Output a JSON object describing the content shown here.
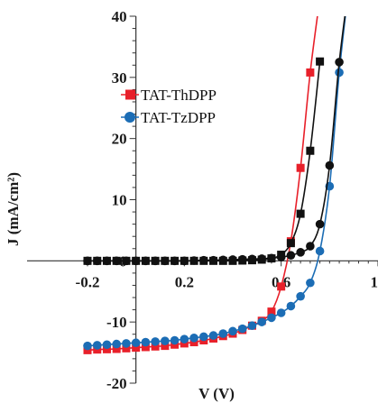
{
  "chart_data": {
    "type": "line",
    "xlabel": "V (V)",
    "ylabel": "J (mA/cm²)",
    "xlim": [
      -0.2,
      1.0
    ],
    "ylim": [
      -20,
      40
    ],
    "x_ticks": [
      "-0.2",
      "0.2",
      "0.6",
      "1"
    ],
    "x_tick_values": [
      -0.2,
      0.2,
      0.6,
      1.0
    ],
    "y_ticks": [
      "-20",
      "-10",
      "0",
      "10",
      "20",
      "30",
      "40"
    ],
    "y_tick_values": [
      -20,
      -10,
      0,
      10,
      20,
      30,
      40
    ],
    "legend_position": "upper-left",
    "series": [
      {
        "name": "TAT-ThDPP",
        "marker": "square",
        "style": "light",
        "color": "#e8202a",
        "markerColor": "#e8202a",
        "x": [
          -0.2,
          -0.16,
          -0.12,
          -0.08,
          -0.04,
          0.0,
          0.04,
          0.08,
          0.12,
          0.16,
          0.2,
          0.24,
          0.28,
          0.32,
          0.36,
          0.4,
          0.44,
          0.48,
          0.52,
          0.56,
          0.6,
          0.64,
          0.68,
          0.72,
          0.76
        ],
        "y": [
          -14.6,
          -14.5,
          -14.45,
          -14.4,
          -14.3,
          -14.2,
          -14.1,
          -14.0,
          -13.9,
          -13.7,
          -13.5,
          -13.3,
          -13.0,
          -12.7,
          -12.3,
          -11.9,
          -11.3,
          -10.6,
          -9.8,
          -8.3,
          -4.2,
          3.2,
          15.2,
          30.8,
          43.0
        ]
      },
      {
        "name": "TAT-ThDPP",
        "marker": "square",
        "style": "dark",
        "color": "#111111",
        "markerColor": "#111111",
        "x": [
          -0.2,
          -0.16,
          -0.12,
          -0.08,
          -0.04,
          0.0,
          0.04,
          0.08,
          0.12,
          0.16,
          0.2,
          0.24,
          0.28,
          0.32,
          0.36,
          0.4,
          0.44,
          0.48,
          0.52,
          0.56,
          0.6,
          0.64,
          0.68,
          0.72,
          0.76
        ],
        "y": [
          0.0,
          0.0,
          0.0,
          0.0,
          0.0,
          0.0,
          0.0,
          0.0,
          0.0,
          0.0,
          0.0,
          0.0,
          0.0,
          0.0,
          0.0,
          0.0,
          0.05,
          0.1,
          0.2,
          0.4,
          1.0,
          2.9,
          7.7,
          18.0,
          32.6
        ]
      },
      {
        "name": "TAT-TzDPP",
        "marker": "circle",
        "style": "light",
        "color": "#1c6db5",
        "markerColor": "#1c6db5",
        "x": [
          -0.2,
          -0.16,
          -0.12,
          -0.08,
          -0.04,
          0.0,
          0.04,
          0.08,
          0.12,
          0.16,
          0.2,
          0.24,
          0.28,
          0.32,
          0.36,
          0.4,
          0.44,
          0.48,
          0.52,
          0.56,
          0.6,
          0.64,
          0.68,
          0.72,
          0.76,
          0.8,
          0.84,
          0.88
        ],
        "y": [
          -13.9,
          -13.8,
          -13.7,
          -13.6,
          -13.5,
          -13.4,
          -13.3,
          -13.2,
          -13.1,
          -13.0,
          -12.8,
          -12.6,
          -12.4,
          -12.2,
          -11.9,
          -11.5,
          -11.1,
          -10.6,
          -10.0,
          -9.3,
          -8.5,
          -7.4,
          -5.8,
          -3.6,
          1.6,
          12.2,
          30.8,
          45.0
        ]
      },
      {
        "name": "TAT-TzDPP",
        "marker": "circle",
        "style": "dark",
        "color": "#111111",
        "markerColor": "#111111",
        "x": [
          -0.2,
          -0.16,
          -0.12,
          -0.08,
          -0.04,
          0.0,
          0.04,
          0.08,
          0.12,
          0.16,
          0.2,
          0.24,
          0.28,
          0.32,
          0.36,
          0.4,
          0.44,
          0.48,
          0.52,
          0.56,
          0.6,
          0.64,
          0.68,
          0.72,
          0.76,
          0.8,
          0.84,
          0.88
        ],
        "y": [
          0.0,
          0.0,
          0.0,
          0.0,
          0.0,
          0.0,
          0.0,
          0.0,
          0.0,
          0.0,
          0.0,
          0.05,
          0.1,
          0.1,
          0.15,
          0.2,
          0.25,
          0.3,
          0.35,
          0.45,
          0.6,
          0.9,
          1.4,
          2.4,
          6.0,
          15.6,
          32.5,
          45.0
        ]
      }
    ],
    "legend": [
      {
        "label": "TAT-ThDPP",
        "marker": "square",
        "color": "#e8202a"
      },
      {
        "label": "TAT-TzDPP",
        "marker": "circle",
        "color": "#1c6db5"
      }
    ]
  }
}
